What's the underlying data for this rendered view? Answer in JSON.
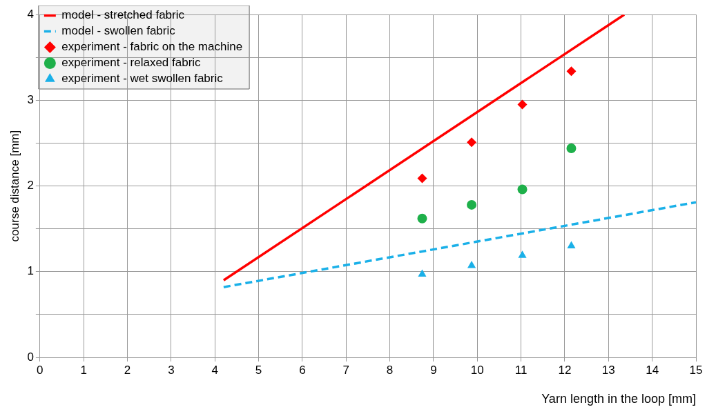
{
  "chart_data": {
    "type": "line",
    "xlabel": "Yarn length in the loop [mm]",
    "ylabel": "course distance [mm]",
    "xlim": [
      0,
      15
    ],
    "xticks": [
      0,
      1,
      2,
      3,
      4,
      5,
      6,
      7,
      8,
      9,
      10,
      11,
      12,
      13,
      14,
      15
    ],
    "ylim": [
      0,
      4
    ],
    "yticks": [
      0,
      {
        "value": 0.5,
        "label": null
      },
      1,
      {
        "value": 1.5,
        "label": null
      },
      2,
      {
        "value": 2.5,
        "label": null
      },
      3,
      {
        "value": 3.5,
        "label": null
      },
      4
    ],
    "grid": true,
    "legend": "top left",
    "series": [
      {
        "name": "model - stretched fabric",
        "color": "#ff0000",
        "marker": "none",
        "line_style": "solid",
        "x": [
          4.2,
          13.36
        ],
        "values": [
          0.9,
          4
        ]
      },
      {
        "name": "model - swollen fabric",
        "color": "#1ab0e8",
        "marker": "none",
        "line_style": "dashed",
        "x": [
          4.2,
          15
        ],
        "values": [
          0.82,
          1.81
        ]
      },
      {
        "name": "experiment - fabric on the machine",
        "type": "scatter",
        "color": "#ff0000",
        "marker": "diamond",
        "x": [
          8.74,
          9.87,
          11.03,
          12.15
        ],
        "values": [
          2.09,
          2.51,
          2.95,
          3.34
        ]
      },
      {
        "name": "experiment - relaxed fabric",
        "type": "scatter",
        "color": "#1eb04a",
        "marker": "circle",
        "x": [
          8.74,
          9.87,
          11.03,
          12.15
        ],
        "values": [
          1.62,
          1.78,
          1.96,
          2.44
        ]
      },
      {
        "name": "experiment - wet swollen fabric",
        "type": "scatter",
        "color": "#1ab0e8",
        "marker": "triangle",
        "x": [
          8.74,
          9.87,
          11.03,
          12.15
        ],
        "values": [
          0.97,
          1.07,
          1.19,
          1.3
        ]
      }
    ]
  }
}
